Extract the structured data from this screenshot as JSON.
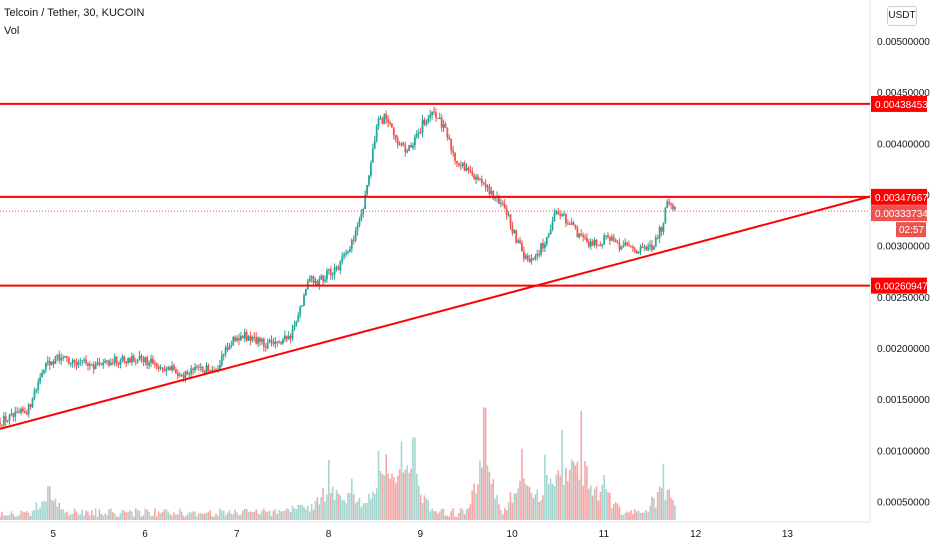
{
  "header": {
    "title": "Telcoin / Tether, 30, KUCOIN",
    "indicator": "Vol",
    "currency_button": "USDT"
  },
  "colors": {
    "up": "#26a69a",
    "down": "#ef5350",
    "vol_up": "#a5d6d0",
    "vol_down": "#f5a7a6",
    "annotation": "#ff0000",
    "axis_text": "#131722"
  },
  "chart_data": {
    "type": "candlestick",
    "title": "Telcoin / Tether, 30, KUCOIN",
    "x_ticks": [
      "5",
      "6",
      "7",
      "8",
      "9",
      "10",
      "11",
      "12",
      "13"
    ],
    "y_ticks": [
      "0.00500000",
      "0.00450000",
      "0.00400000",
      "0.00350000",
      "0.00300000",
      "0.00250000",
      "0.00200000",
      "0.00150000",
      "0.00100000",
      "0.00050000"
    ],
    "ylim": [
      0.0003,
      0.0054
    ],
    "x_range_days": [
      4.42,
      13.9
    ],
    "grid": false,
    "price_path": [
      [
        4.42,
        0.00128
      ],
      [
        4.6,
        0.00133
      ],
      [
        4.75,
        0.0014
      ],
      [
        4.85,
        0.00165
      ],
      [
        4.92,
        0.00183
      ],
      [
        5.05,
        0.0019
      ],
      [
        5.25,
        0.00188
      ],
      [
        5.45,
        0.00183
      ],
      [
        5.65,
        0.00187
      ],
      [
        5.85,
        0.0019
      ],
      [
        6.05,
        0.00187
      ],
      [
        6.25,
        0.0018
      ],
      [
        6.45,
        0.00175
      ],
      [
        6.6,
        0.00178
      ],
      [
        6.8,
        0.0018
      ],
      [
        6.95,
        0.00205
      ],
      [
        7.1,
        0.00212
      ],
      [
        7.3,
        0.00205
      ],
      [
        7.45,
        0.00202
      ],
      [
        7.6,
        0.00212
      ],
      [
        7.72,
        0.0024
      ],
      [
        7.8,
        0.00268
      ],
      [
        7.9,
        0.00265
      ],
      [
        8.0,
        0.00272
      ],
      [
        8.15,
        0.00282
      ],
      [
        8.28,
        0.00305
      ],
      [
        8.4,
        0.0034
      ],
      [
        8.48,
        0.0038
      ],
      [
        8.55,
        0.0042
      ],
      [
        8.65,
        0.00425
      ],
      [
        8.75,
        0.00405
      ],
      [
        8.85,
        0.00392
      ],
      [
        8.95,
        0.004
      ],
      [
        9.05,
        0.0042
      ],
      [
        9.18,
        0.0043
      ],
      [
        9.3,
        0.0041
      ],
      [
        9.4,
        0.00385
      ],
      [
        9.55,
        0.0037
      ],
      [
        9.7,
        0.0036
      ],
      [
        9.8,
        0.0035
      ],
      [
        9.95,
        0.00335
      ],
      [
        10.05,
        0.0031
      ],
      [
        10.15,
        0.0029
      ],
      [
        10.25,
        0.00285
      ],
      [
        10.38,
        0.00305
      ],
      [
        10.48,
        0.0033
      ],
      [
        10.58,
        0.00328
      ],
      [
        10.7,
        0.00315
      ],
      [
        10.82,
        0.00305
      ],
      [
        10.95,
        0.003
      ],
      [
        11.05,
        0.0031
      ],
      [
        11.18,
        0.003
      ],
      [
        11.3,
        0.00298
      ],
      [
        11.42,
        0.00295
      ],
      [
        11.55,
        0.003
      ],
      [
        11.65,
        0.00318
      ],
      [
        11.72,
        0.00345
      ],
      [
        11.78,
        0.00338
      ]
    ],
    "volume": {
      "ymax": 0.0016,
      "spikes": [
        [
          4.95,
          0.00045
        ],
        [
          7.7,
          0.0002
        ],
        [
          8.0,
          0.0008
        ],
        [
          8.25,
          0.00055
        ],
        [
          8.55,
          0.00065
        ],
        [
          8.62,
          0.0008
        ],
        [
          8.8,
          0.00095
        ],
        [
          8.93,
          0.0011
        ],
        [
          9.7,
          0.0015
        ],
        [
          10.1,
          0.00095
        ],
        [
          10.35,
          0.00085
        ],
        [
          10.55,
          0.0012
        ],
        [
          10.75,
          0.00145
        ],
        [
          11.0,
          0.0006
        ],
        [
          11.65,
          0.00075
        ]
      ]
    },
    "horizontal_levels": [
      {
        "value": 0.00438453,
        "label": "0.00438453"
      },
      {
        "value": 0.00347667,
        "label": "0.00347667"
      },
      {
        "value": 0.00260947,
        "label": "0.00260947"
      }
    ],
    "trendline": {
      "from": [
        4.42,
        0.00121
      ],
      "to": [
        13.9,
        0.00348
      ]
    },
    "last_price": {
      "value": 0.00333734,
      "label": "0.00333734",
      "countdown": "02:57"
    }
  }
}
